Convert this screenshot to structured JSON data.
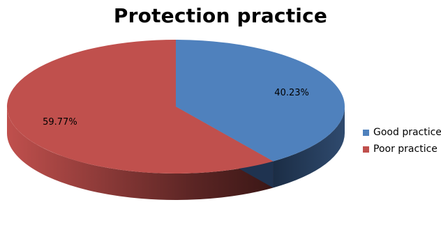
{
  "chart_data": {
    "type": "pie",
    "title": "Protection practice",
    "categories": [
      "Good practice",
      "Poor practice"
    ],
    "values": [
      40.23,
      59.77
    ],
    "labels": [
      "40.23%",
      "59.77%"
    ],
    "colors": [
      "#4f81bd",
      "#c0504d"
    ],
    "legend_position": "right",
    "style": "3d"
  }
}
